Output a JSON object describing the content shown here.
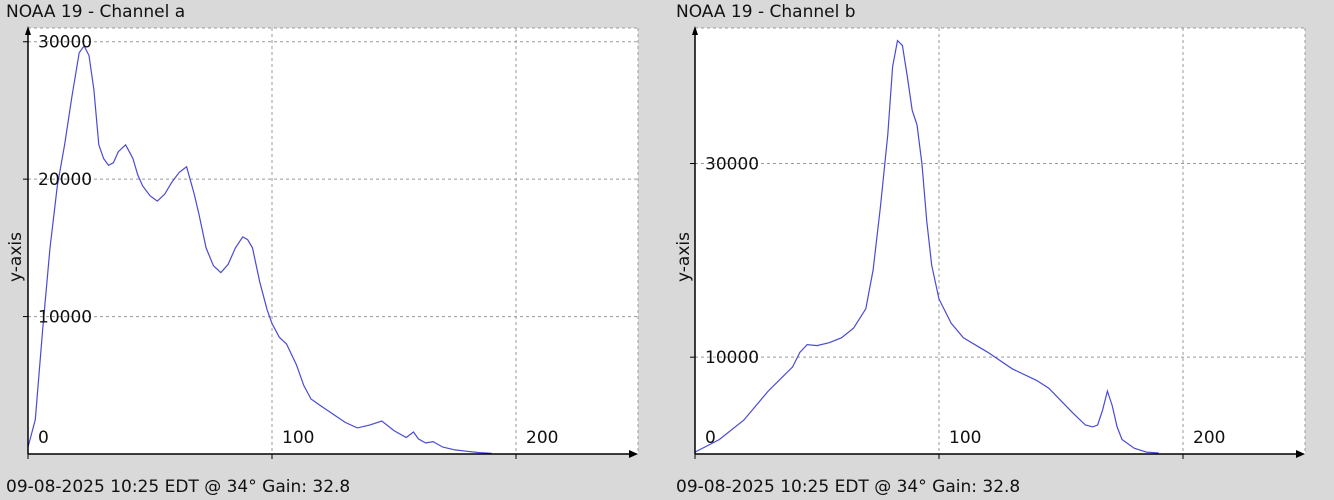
{
  "charts": [
    {
      "title": "NOAA 19 - Channel a",
      "footer": "09-08-2025 10:25 EDT @ 34° Gain: 32.8",
      "ylabel": "y-axis"
    },
    {
      "title": "NOAA 19 - Channel b",
      "footer": "09-08-2025 10:25 EDT @ 34° Gain: 32.8",
      "ylabel": "y-axis"
    }
  ],
  "chart_data": [
    {
      "type": "line",
      "title": "NOAA 19 - Channel a",
      "xlabel": "",
      "ylabel": "y-axis",
      "xlim": [
        0,
        250
      ],
      "ylim": [
        0,
        31000
      ],
      "xticks": [
        0,
        100,
        200
      ],
      "yticks": [
        10000,
        20000,
        30000
      ],
      "grid": true,
      "color": "#4a4ad6",
      "x": [
        0,
        3,
        6,
        9,
        12,
        15,
        18,
        21,
        23,
        25,
        27,
        29,
        31,
        33,
        35,
        37,
        40,
        43,
        45,
        47,
        50,
        53,
        56,
        59,
        62,
        65,
        68,
        70,
        73,
        76,
        79,
        82,
        85,
        88,
        90,
        92,
        95,
        98,
        100,
        103,
        106,
        110,
        113,
        116,
        120,
        125,
        130,
        135,
        140,
        145,
        150,
        155,
        158,
        160,
        163,
        166,
        170,
        175,
        180,
        185,
        190
      ],
      "y": [
        500,
        2500,
        9000,
        15000,
        19500,
        22500,
        26000,
        29200,
        29700,
        29000,
        26500,
        22500,
        21500,
        21000,
        21200,
        22000,
        22500,
        21500,
        20300,
        19500,
        18800,
        18400,
        18900,
        19800,
        20500,
        20900,
        19000,
        17500,
        15000,
        13700,
        13200,
        13800,
        15000,
        15800,
        15600,
        15000,
        12500,
        10500,
        9500,
        8500,
        8000,
        6500,
        5000,
        4000,
        3500,
        2900,
        2300,
        1900,
        2100,
        2400,
        1700,
        1200,
        1600,
        1100,
        800,
        900,
        500,
        300,
        200,
        100,
        50
      ]
    },
    {
      "type": "line",
      "title": "NOAA 19 - Channel b",
      "xlabel": "",
      "ylabel": "y-axis",
      "xlim": [
        0,
        250
      ],
      "ylim": [
        0,
        44000
      ],
      "xticks": [
        0,
        100,
        200
      ],
      "yticks": [
        10000,
        30000
      ],
      "grid": true,
      "color": "#4a4ad6",
      "x": [
        0,
        10,
        20,
        30,
        40,
        43,
        46,
        50,
        55,
        60,
        65,
        70,
        73,
        76,
        79,
        81,
        83,
        85,
        87,
        89,
        91,
        93,
        95,
        97,
        100,
        105,
        110,
        120,
        130,
        140,
        145,
        150,
        155,
        160,
        163,
        165,
        167,
        169,
        171,
        173,
        175,
        180,
        185,
        190
      ],
      "y": [
        200,
        1500,
        3500,
        6500,
        9000,
        10500,
        11300,
        11200,
        11500,
        12000,
        13000,
        15000,
        19000,
        25500,
        33000,
        40000,
        42700,
        42200,
        39000,
        35500,
        34000,
        30000,
        24000,
        19500,
        16000,
        13500,
        12000,
        10500,
        8800,
        7600,
        6800,
        5500,
        4200,
        3000,
        2800,
        3000,
        4500,
        6500,
        5000,
        2800,
        1500,
        600,
        200,
        100
      ]
    }
  ]
}
